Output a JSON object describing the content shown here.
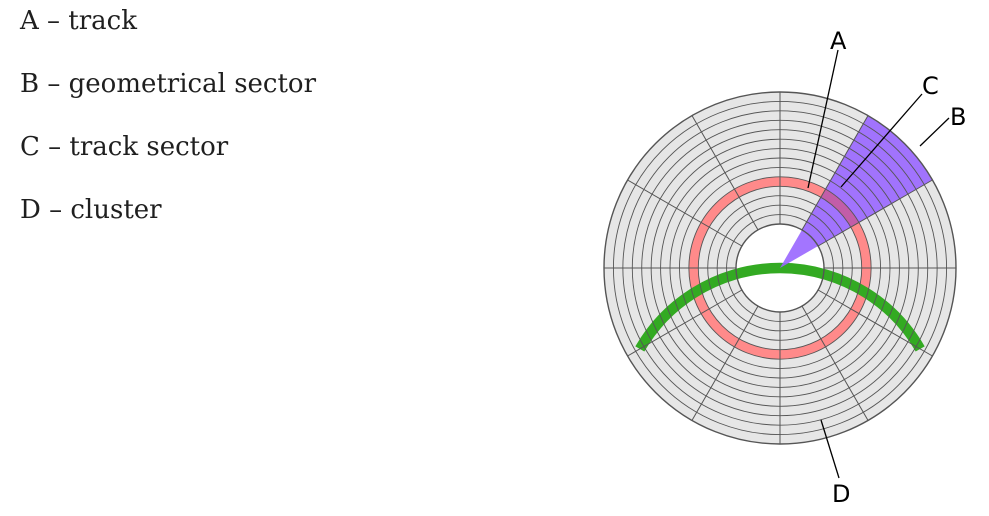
{
  "legend": [
    {
      "letter": "A",
      "text": "A – track"
    },
    {
      "letter": "B",
      "text": "B – geometrical sector"
    },
    {
      "letter": "C",
      "text": "C – track sector"
    },
    {
      "letter": "D",
      "text": "D – cluster"
    }
  ],
  "diagram": {
    "callouts": {
      "A": "A",
      "B": "B",
      "C": "C",
      "D": "D"
    },
    "colors": {
      "platter": "#e6e6e6",
      "lines": "#555555",
      "track": "#ff8a8a",
      "geometrical_sector": "#9966ff",
      "cluster": "#33aa22"
    }
  }
}
